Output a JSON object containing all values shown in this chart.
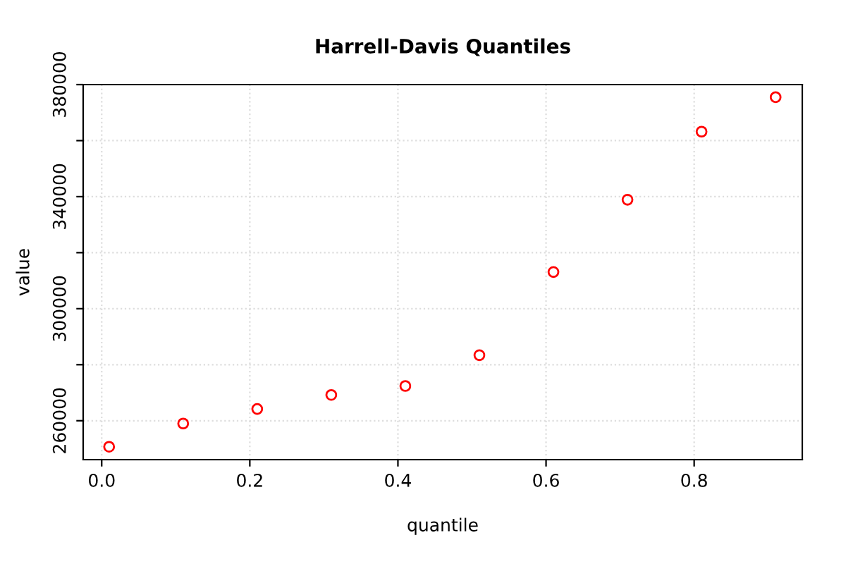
{
  "chart_data": {
    "type": "scatter",
    "title": "Harrell-Davis Quantiles",
    "xlabel": "quantile",
    "ylabel": "value",
    "x": [
      0.01,
      0.11,
      0.21,
      0.31,
      0.41,
      0.51,
      0.61,
      0.71,
      0.81,
      0.91
    ],
    "series": [
      {
        "color": "#ff0000",
        "values": [
          250700,
          259000,
          264200,
          269200,
          272400,
          283400,
          313100,
          338900,
          363200,
          375500
        ]
      }
    ],
    "marker": "circle",
    "grid": true,
    "xlim": [
      -0.025,
      0.946
    ],
    "xticks": [
      {
        "value": 0,
        "label": "0.0"
      },
      0.2,
      0.4,
      0.6,
      0.8
    ],
    "ylim": [
      246100,
      380000
    ],
    "yticks": [
      260000,
      {
        "value": 280000,
        "label": null
      },
      300000,
      {
        "value": 320000,
        "label": null
      },
      340000,
      {
        "value": 360000,
        "label": null
      },
      380000
    ]
  }
}
